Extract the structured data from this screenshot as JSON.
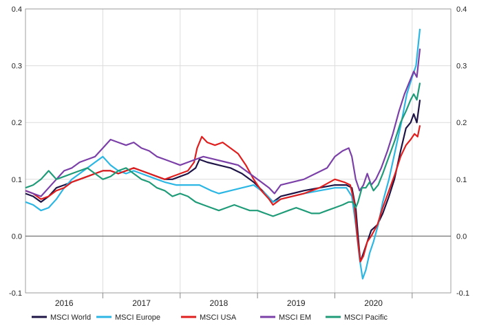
{
  "chart_data": {
    "type": "line",
    "title": "",
    "xlabel": "",
    "ylabel": "",
    "ylim": [
      -0.1,
      0.4
    ],
    "y_ticks": [
      -0.1,
      0.0,
      0.1,
      0.2,
      0.3,
      0.4
    ],
    "y_tick_labels": [
      "-0.1",
      "0.0",
      "0.1",
      "0.2",
      "0.3",
      "0.4"
    ],
    "xlim": [
      2015.5,
      2021.0
    ],
    "x_ticks": [
      2016,
      2017,
      2018,
      2019,
      2020
    ],
    "x_tick_labels": [
      "2016",
      "2017",
      "2018",
      "2019",
      "2020"
    ],
    "grid": true,
    "legend_position": "bottom",
    "series": [
      {
        "name": "MSCI World",
        "color": "#1e1446",
        "points": [
          [
            2015.5,
            0.075
          ],
          [
            2015.6,
            0.07
          ],
          [
            2015.7,
            0.06
          ],
          [
            2015.8,
            0.07
          ],
          [
            2015.9,
            0.085
          ],
          [
            2016.0,
            0.09
          ],
          [
            2016.1,
            0.095
          ],
          [
            2016.2,
            0.1
          ],
          [
            2016.3,
            0.105
          ],
          [
            2016.4,
            0.11
          ],
          [
            2016.5,
            0.115
          ],
          [
            2016.6,
            0.115
          ],
          [
            2016.7,
            0.11
          ],
          [
            2016.8,
            0.115
          ],
          [
            2016.9,
            0.12
          ],
          [
            2017.0,
            0.115
          ],
          [
            2017.1,
            0.11
          ],
          [
            2017.2,
            0.105
          ],
          [
            2017.3,
            0.1
          ],
          [
            2017.4,
            0.1
          ],
          [
            2017.5,
            0.105
          ],
          [
            2017.6,
            0.11
          ],
          [
            2017.7,
            0.12
          ],
          [
            2017.75,
            0.135
          ],
          [
            2017.85,
            0.13
          ],
          [
            2018.0,
            0.125
          ],
          [
            2018.15,
            0.12
          ],
          [
            2018.3,
            0.11
          ],
          [
            2018.45,
            0.095
          ],
          [
            2018.6,
            0.075
          ],
          [
            2018.7,
            0.06
          ],
          [
            2018.8,
            0.07
          ],
          [
            2018.95,
            0.075
          ],
          [
            2019.1,
            0.08
          ],
          [
            2019.3,
            0.085
          ],
          [
            2019.5,
            0.09
          ],
          [
            2019.65,
            0.09
          ],
          [
            2019.72,
            0.085
          ],
          [
            2019.77,
            0.05
          ],
          [
            2019.8,
            0.0
          ],
          [
            2019.83,
            -0.045
          ],
          [
            2019.87,
            -0.03
          ],
          [
            2019.92,
            -0.01
          ],
          [
            2019.97,
            0.01
          ],
          [
            2020.05,
            0.02
          ],
          [
            2020.12,
            0.04
          ],
          [
            2020.2,
            0.07
          ],
          [
            2020.27,
            0.1
          ],
          [
            2020.35,
            0.15
          ],
          [
            2020.42,
            0.19
          ],
          [
            2020.48,
            0.2
          ],
          [
            2020.52,
            0.215
          ],
          [
            2020.56,
            0.2
          ],
          [
            2020.6,
            0.24
          ]
        ]
      },
      {
        "name": "MSCI Europe",
        "color": "#2bb6e4",
        "points": [
          [
            2015.5,
            0.06
          ],
          [
            2015.6,
            0.055
          ],
          [
            2015.7,
            0.045
          ],
          [
            2015.8,
            0.05
          ],
          [
            2015.9,
            0.065
          ],
          [
            2016.0,
            0.085
          ],
          [
            2016.1,
            0.1
          ],
          [
            2016.2,
            0.11
          ],
          [
            2016.3,
            0.12
          ],
          [
            2016.4,
            0.13
          ],
          [
            2016.5,
            0.14
          ],
          [
            2016.6,
            0.125
          ],
          [
            2016.7,
            0.115
          ],
          [
            2016.8,
            0.11
          ],
          [
            2016.9,
            0.115
          ],
          [
            2017.0,
            0.11
          ],
          [
            2017.1,
            0.105
          ],
          [
            2017.2,
            0.1
          ],
          [
            2017.3,
            0.095
          ],
          [
            2017.45,
            0.09
          ],
          [
            2017.6,
            0.09
          ],
          [
            2017.75,
            0.09
          ],
          [
            2017.9,
            0.08
          ],
          [
            2018.0,
            0.075
          ],
          [
            2018.15,
            0.08
          ],
          [
            2018.3,
            0.085
          ],
          [
            2018.45,
            0.09
          ],
          [
            2018.6,
            0.075
          ],
          [
            2018.7,
            0.06
          ],
          [
            2018.8,
            0.065
          ],
          [
            2018.95,
            0.07
          ],
          [
            2019.1,
            0.075
          ],
          [
            2019.3,
            0.08
          ],
          [
            2019.5,
            0.085
          ],
          [
            2019.65,
            0.085
          ],
          [
            2019.72,
            0.07
          ],
          [
            2019.77,
            0.02
          ],
          [
            2019.82,
            -0.04
          ],
          [
            2019.86,
            -0.075
          ],
          [
            2019.9,
            -0.06
          ],
          [
            2019.95,
            -0.03
          ],
          [
            2020.0,
            -0.01
          ],
          [
            2020.06,
            0.02
          ],
          [
            2020.12,
            0.06
          ],
          [
            2020.2,
            0.1
          ],
          [
            2020.28,
            0.15
          ],
          [
            2020.36,
            0.2
          ],
          [
            2020.43,
            0.25
          ],
          [
            2020.5,
            0.28
          ],
          [
            2020.55,
            0.3
          ],
          [
            2020.6,
            0.365
          ]
        ]
      },
      {
        "name": "MSCI USA",
        "color": "#e01e1e",
        "points": [
          [
            2015.5,
            0.08
          ],
          [
            2015.6,
            0.075
          ],
          [
            2015.7,
            0.065
          ],
          [
            2015.8,
            0.07
          ],
          [
            2015.9,
            0.08
          ],
          [
            2016.0,
            0.085
          ],
          [
            2016.1,
            0.095
          ],
          [
            2016.2,
            0.1
          ],
          [
            2016.3,
            0.105
          ],
          [
            2016.4,
            0.11
          ],
          [
            2016.5,
            0.115
          ],
          [
            2016.6,
            0.115
          ],
          [
            2016.7,
            0.11
          ],
          [
            2016.8,
            0.115
          ],
          [
            2016.9,
            0.12
          ],
          [
            2017.0,
            0.115
          ],
          [
            2017.1,
            0.11
          ],
          [
            2017.2,
            0.105
          ],
          [
            2017.3,
            0.1
          ],
          [
            2017.4,
            0.105
          ],
          [
            2017.5,
            0.11
          ],
          [
            2017.6,
            0.115
          ],
          [
            2017.68,
            0.13
          ],
          [
            2017.72,
            0.155
          ],
          [
            2017.78,
            0.175
          ],
          [
            2017.85,
            0.165
          ],
          [
            2017.95,
            0.16
          ],
          [
            2018.05,
            0.165
          ],
          [
            2018.15,
            0.155
          ],
          [
            2018.25,
            0.145
          ],
          [
            2018.35,
            0.125
          ],
          [
            2018.45,
            0.1
          ],
          [
            2018.55,
            0.08
          ],
          [
            2018.65,
            0.065
          ],
          [
            2018.7,
            0.055
          ],
          [
            2018.8,
            0.065
          ],
          [
            2018.95,
            0.07
          ],
          [
            2019.1,
            0.075
          ],
          [
            2019.3,
            0.085
          ],
          [
            2019.5,
            0.1
          ],
          [
            2019.62,
            0.095
          ],
          [
            2019.7,
            0.09
          ],
          [
            2019.75,
            0.06
          ],
          [
            2019.79,
            0.0
          ],
          [
            2019.83,
            -0.045
          ],
          [
            2019.87,
            -0.035
          ],
          [
            2019.92,
            -0.01
          ],
          [
            2019.97,
            0.0
          ],
          [
            2020.05,
            0.02
          ],
          [
            2020.12,
            0.05
          ],
          [
            2020.2,
            0.08
          ],
          [
            2020.28,
            0.11
          ],
          [
            2020.35,
            0.14
          ],
          [
            2020.42,
            0.16
          ],
          [
            2020.48,
            0.17
          ],
          [
            2020.53,
            0.18
          ],
          [
            2020.57,
            0.175
          ],
          [
            2020.6,
            0.195
          ]
        ]
      },
      {
        "name": "MSCI EM",
        "color": "#7b3fa8",
        "points": [
          [
            2015.5,
            0.08
          ],
          [
            2015.6,
            0.075
          ],
          [
            2015.7,
            0.07
          ],
          [
            2015.8,
            0.085
          ],
          [
            2015.9,
            0.1
          ],
          [
            2016.0,
            0.115
          ],
          [
            2016.1,
            0.12
          ],
          [
            2016.2,
            0.13
          ],
          [
            2016.3,
            0.135
          ],
          [
            2016.4,
            0.14
          ],
          [
            2016.5,
            0.155
          ],
          [
            2016.6,
            0.17
          ],
          [
            2016.7,
            0.165
          ],
          [
            2016.8,
            0.16
          ],
          [
            2016.9,
            0.165
          ],
          [
            2017.0,
            0.155
          ],
          [
            2017.1,
            0.15
          ],
          [
            2017.2,
            0.14
          ],
          [
            2017.3,
            0.135
          ],
          [
            2017.4,
            0.13
          ],
          [
            2017.5,
            0.125
          ],
          [
            2017.6,
            0.13
          ],
          [
            2017.7,
            0.135
          ],
          [
            2017.8,
            0.14
          ],
          [
            2017.95,
            0.135
          ],
          [
            2018.1,
            0.13
          ],
          [
            2018.25,
            0.125
          ],
          [
            2018.4,
            0.11
          ],
          [
            2018.55,
            0.095
          ],
          [
            2018.65,
            0.085
          ],
          [
            2018.72,
            0.075
          ],
          [
            2018.8,
            0.09
          ],
          [
            2018.95,
            0.095
          ],
          [
            2019.1,
            0.1
          ],
          [
            2019.25,
            0.11
          ],
          [
            2019.4,
            0.12
          ],
          [
            2019.5,
            0.14
          ],
          [
            2019.6,
            0.15
          ],
          [
            2019.68,
            0.155
          ],
          [
            2019.72,
            0.14
          ],
          [
            2019.77,
            0.1
          ],
          [
            2019.82,
            0.08
          ],
          [
            2019.87,
            0.09
          ],
          [
            2019.92,
            0.11
          ],
          [
            2019.97,
            0.09
          ],
          [
            2020.03,
            0.1
          ],
          [
            2020.1,
            0.12
          ],
          [
            2020.18,
            0.15
          ],
          [
            2020.25,
            0.18
          ],
          [
            2020.33,
            0.22
          ],
          [
            2020.4,
            0.25
          ],
          [
            2020.46,
            0.27
          ],
          [
            2020.52,
            0.29
          ],
          [
            2020.56,
            0.28
          ],
          [
            2020.6,
            0.33
          ]
        ]
      },
      {
        "name": "MSCI Pacific",
        "color": "#1f9b78",
        "points": [
          [
            2015.5,
            0.085
          ],
          [
            2015.6,
            0.09
          ],
          [
            2015.7,
            0.1
          ],
          [
            2015.8,
            0.115
          ],
          [
            2015.9,
            0.1
          ],
          [
            2016.0,
            0.105
          ],
          [
            2016.1,
            0.11
          ],
          [
            2016.2,
            0.115
          ],
          [
            2016.3,
            0.12
          ],
          [
            2016.4,
            0.11
          ],
          [
            2016.5,
            0.1
          ],
          [
            2016.6,
            0.105
          ],
          [
            2016.7,
            0.115
          ],
          [
            2016.8,
            0.12
          ],
          [
            2016.9,
            0.11
          ],
          [
            2017.0,
            0.1
          ],
          [
            2017.1,
            0.095
          ],
          [
            2017.2,
            0.085
          ],
          [
            2017.3,
            0.08
          ],
          [
            2017.4,
            0.07
          ],
          [
            2017.5,
            0.075
          ],
          [
            2017.6,
            0.07
          ],
          [
            2017.7,
            0.06
          ],
          [
            2017.8,
            0.055
          ],
          [
            2017.9,
            0.05
          ],
          [
            2018.0,
            0.045
          ],
          [
            2018.1,
            0.05
          ],
          [
            2018.2,
            0.055
          ],
          [
            2018.3,
            0.05
          ],
          [
            2018.4,
            0.045
          ],
          [
            2018.5,
            0.045
          ],
          [
            2018.6,
            0.04
          ],
          [
            2018.7,
            0.035
          ],
          [
            2018.8,
            0.04
          ],
          [
            2018.9,
            0.045
          ],
          [
            2019.0,
            0.05
          ],
          [
            2019.1,
            0.045
          ],
          [
            2019.2,
            0.04
          ],
          [
            2019.3,
            0.04
          ],
          [
            2019.4,
            0.045
          ],
          [
            2019.5,
            0.05
          ],
          [
            2019.6,
            0.055
          ],
          [
            2019.68,
            0.06
          ],
          [
            2019.73,
            0.06
          ],
          [
            2019.77,
            0.05
          ],
          [
            2019.8,
            0.06
          ],
          [
            2019.85,
            0.085
          ],
          [
            2019.9,
            0.085
          ],
          [
            2019.95,
            0.095
          ],
          [
            2020.0,
            0.08
          ],
          [
            2020.06,
            0.09
          ],
          [
            2020.12,
            0.11
          ],
          [
            2020.2,
            0.14
          ],
          [
            2020.28,
            0.17
          ],
          [
            2020.35,
            0.2
          ],
          [
            2020.42,
            0.22
          ],
          [
            2020.48,
            0.24
          ],
          [
            2020.52,
            0.25
          ],
          [
            2020.56,
            0.24
          ],
          [
            2020.6,
            0.27
          ]
        ]
      }
    ]
  }
}
